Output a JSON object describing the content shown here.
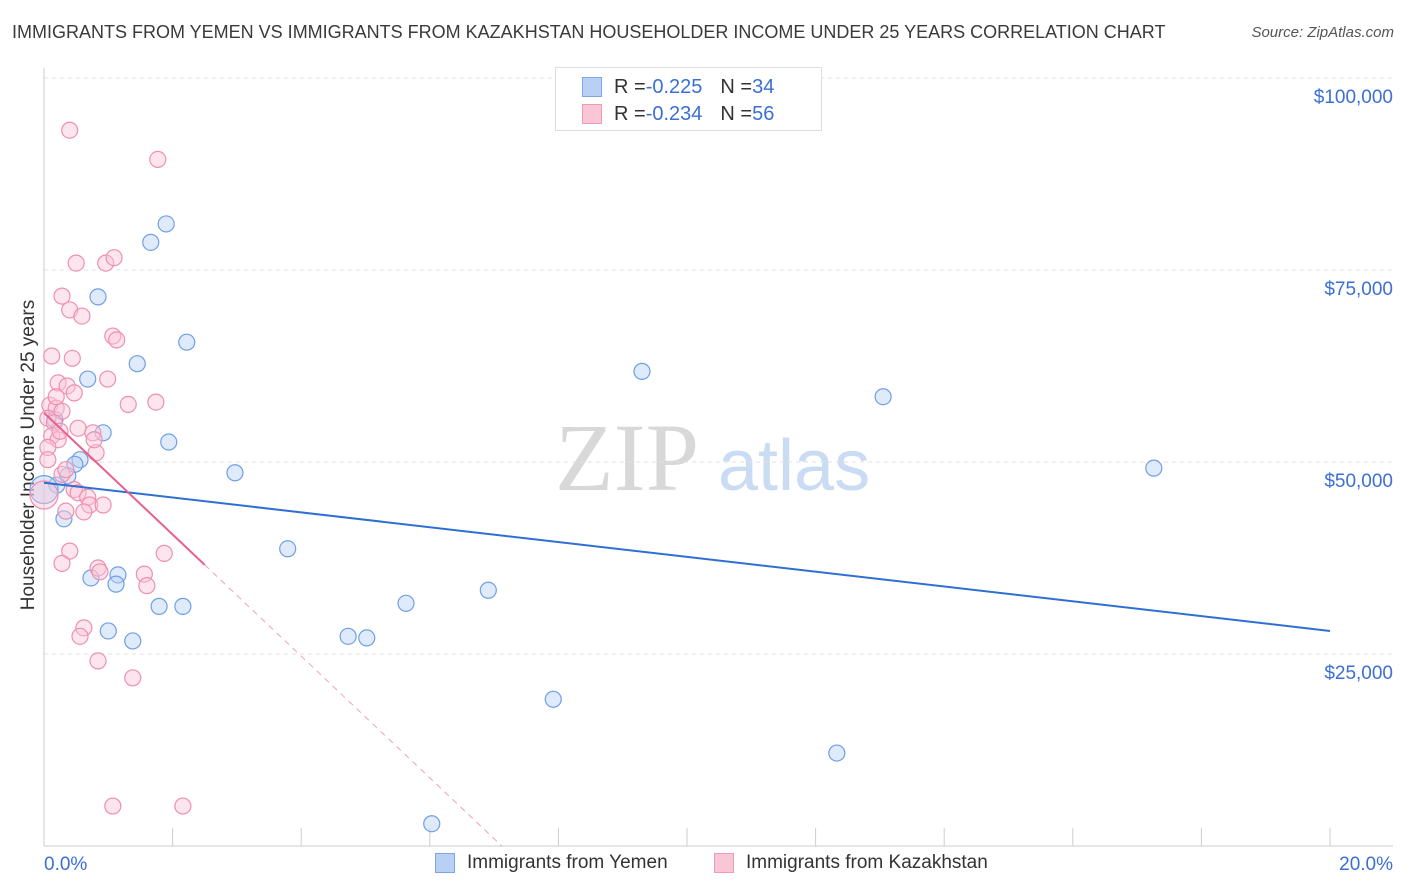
{
  "title": "IMMIGRANTS FROM YEMEN VS IMMIGRANTS FROM KAZAKHSTAN HOUSEHOLDER INCOME UNDER 25 YEARS CORRELATION CHART",
  "source": "Source: ZipAtlas.com",
  "legend": {
    "rows": [
      {
        "r_label": "R = ",
        "r": "-0.225",
        "n_label": "N = ",
        "n": "34"
      },
      {
        "r_label": "R = ",
        "r": "-0.234",
        "n_label": "N = ",
        "n": "56"
      }
    ]
  },
  "watermark": "ZIPatlas",
  "colors": {
    "yemen": "#6f9fe6",
    "kazakhstan": "#f08fb0",
    "blue_line": "#2f6fd4",
    "pink_line": "#e8608e"
  },
  "chart_data": {
    "type": "scatter",
    "title": "IMMIGRANTS FROM YEMEN VS IMMIGRANTS FROM KAZAKHSTAN HOUSEHOLDER INCOME UNDER 25 YEARS CORRELATION CHART",
    "xlabel": "",
    "ylabel": "Householder Income Under 25 years",
    "xlim": [
      0,
      20
    ],
    "ylim": [
      0,
      100000
    ],
    "x_tick_labels": [
      "0.0%",
      "20.0%"
    ],
    "y_ticks": [
      {
        "v": 25000,
        "label": "$25,000"
      },
      {
        "v": 50000,
        "label": "$50,000"
      },
      {
        "v": 75000,
        "label": "$75,000"
      },
      {
        "v": 100000,
        "label": "$100,000"
      }
    ],
    "legend_position": "bottom",
    "series": [
      {
        "name": "Immigrants from Yemen",
        "trend": [
          [
            0,
            47300
          ],
          [
            20,
            28000
          ]
        ],
        "points": [
          [
            1.9,
            81000
          ],
          [
            1.66,
            78600
          ],
          [
            0.84,
            71500
          ],
          [
            2.22,
            65600
          ],
          [
            1.45,
            62800
          ],
          [
            0.68,
            60800
          ],
          [
            9.3,
            61800
          ],
          [
            13.05,
            58500
          ],
          [
            0.17,
            55500
          ],
          [
            0.92,
            53800
          ],
          [
            1.94,
            52600
          ],
          [
            0.56,
            50300
          ],
          [
            0.48,
            49700
          ],
          [
            2.97,
            48600
          ],
          [
            17.26,
            49200
          ],
          [
            0.37,
            48200
          ],
          [
            0.2,
            47000
          ],
          [
            0,
            46400
          ],
          [
            0.31,
            42600
          ],
          [
            3.79,
            38700
          ],
          [
            0.73,
            34900
          ],
          [
            1.15,
            35300
          ],
          [
            1.12,
            34100
          ],
          [
            1.79,
            31200
          ],
          [
            2.16,
            31200
          ],
          [
            5.63,
            31600
          ],
          [
            6.91,
            33300
          ],
          [
            1.0,
            28000
          ],
          [
            1.38,
            26700
          ],
          [
            4.73,
            27300
          ],
          [
            5.02,
            27100
          ],
          [
            7.92,
            19100
          ],
          [
            12.33,
            12100
          ],
          [
            6.03,
            2900
          ]
        ]
      },
      {
        "name": "Immigrants from Kazakhstan",
        "trend": [
          [
            0,
            56400
          ],
          [
            2.5,
            36600
          ]
        ],
        "trend_dashed": [
          [
            2.5,
            36600
          ],
          [
            7.12,
            0
          ]
        ],
        "points": [
          [
            0.4,
            93200
          ],
          [
            1.77,
            89400
          ],
          [
            0.5,
            75900
          ],
          [
            0.96,
            75900
          ],
          [
            1.09,
            76600
          ],
          [
            0.28,
            71600
          ],
          [
            0.4,
            69800
          ],
          [
            0.59,
            69000
          ],
          [
            1.07,
            66400
          ],
          [
            1.13,
            65900
          ],
          [
            0.12,
            63800
          ],
          [
            0.44,
            63500
          ],
          [
            0.99,
            60800
          ],
          [
            0.22,
            60300
          ],
          [
            0.36,
            59900
          ],
          [
            0.47,
            59000
          ],
          [
            1.31,
            57500
          ],
          [
            1.74,
            57800
          ],
          [
            0.09,
            57400
          ],
          [
            0.19,
            57000
          ],
          [
            0.28,
            56600
          ],
          [
            0.06,
            55700
          ],
          [
            0.16,
            55100
          ],
          [
            0.53,
            54400
          ],
          [
            0.76,
            53800
          ],
          [
            0.12,
            53400
          ],
          [
            0.22,
            52900
          ],
          [
            0.06,
            51900
          ],
          [
            0.81,
            51200
          ],
          [
            0.28,
            48400
          ],
          [
            0.47,
            46400
          ],
          [
            0.53,
            46000
          ],
          [
            0.68,
            45400
          ],
          [
            0.71,
            44400
          ],
          [
            0.92,
            44400
          ],
          [
            0.34,
            43600
          ],
          [
            0,
            45700
          ],
          [
            0.4,
            38400
          ],
          [
            1.87,
            38100
          ],
          [
            0.28,
            36800
          ],
          [
            0.84,
            36200
          ],
          [
            1.56,
            35400
          ],
          [
            1.6,
            33900
          ],
          [
            0.62,
            28400
          ],
          [
            0.56,
            27300
          ],
          [
            0.84,
            24100
          ],
          [
            1.38,
            21900
          ],
          [
            1.07,
            5200
          ],
          [
            2.16,
            5200
          ],
          [
            0.25,
            54000
          ],
          [
            0.34,
            49000
          ],
          [
            0.19,
            58500
          ],
          [
            0.62,
            43500
          ],
          [
            0.78,
            52900
          ],
          [
            0.06,
            50300
          ],
          [
            0.87,
            35700
          ]
        ]
      }
    ]
  }
}
